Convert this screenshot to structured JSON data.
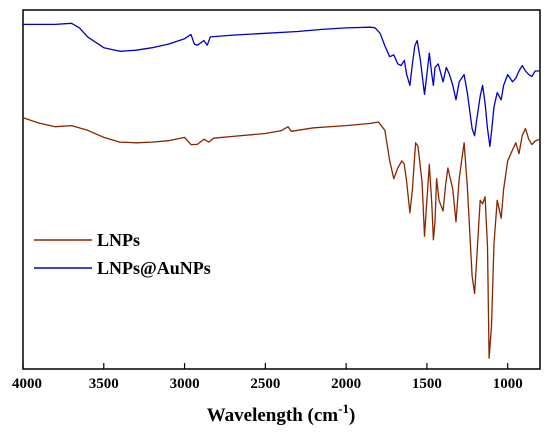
{
  "chart_data": {
    "type": "line",
    "title": "",
    "xlabel": "Wavelength (cm",
    "xlabel_superscript": "-1",
    "xlabel_suffix": ")",
    "ylabel": "",
    "xlim": [
      4000,
      800
    ],
    "xticks": [
      4000,
      3500,
      3000,
      2500,
      2000,
      1500,
      1000
    ],
    "ylim": [
      0,
      100
    ],
    "grid": false,
    "legend_placement": "left",
    "series": [
      {
        "name": "LNPs",
        "color": "#8B2500",
        "points": [
          [
            4000,
            70
          ],
          [
            3900,
            68.5
          ],
          [
            3800,
            67.5
          ],
          [
            3700,
            67.8
          ],
          [
            3600,
            66.5
          ],
          [
            3500,
            64.5
          ],
          [
            3400,
            63.2
          ],
          [
            3300,
            63.0
          ],
          [
            3200,
            63.2
          ],
          [
            3100,
            63.6
          ],
          [
            3000,
            64.5
          ],
          [
            2960,
            62.5
          ],
          [
            2920,
            62.6
          ],
          [
            2880,
            64.0
          ],
          [
            2850,
            63.2
          ],
          [
            2820,
            64.3
          ],
          [
            2700,
            64.8
          ],
          [
            2500,
            65.6
          ],
          [
            2400,
            66.4
          ],
          [
            2360,
            67.5
          ],
          [
            2340,
            66.2
          ],
          [
            2200,
            67.2
          ],
          [
            2000,
            67.8
          ],
          [
            1850,
            68.4
          ],
          [
            1800,
            68.8
          ],
          [
            1760,
            66.5
          ],
          [
            1730,
            58
          ],
          [
            1705,
            53
          ],
          [
            1680,
            56
          ],
          [
            1655,
            58
          ],
          [
            1640,
            57
          ],
          [
            1625,
            52
          ],
          [
            1605,
            43.5
          ],
          [
            1590,
            50
          ],
          [
            1570,
            63
          ],
          [
            1555,
            62
          ],
          [
            1530,
            52
          ],
          [
            1515,
            37
          ],
          [
            1500,
            47
          ],
          [
            1485,
            57
          ],
          [
            1470,
            46
          ],
          [
            1460,
            36
          ],
          [
            1450,
            41
          ],
          [
            1440,
            53
          ],
          [
            1425,
            47
          ],
          [
            1400,
            44
          ],
          [
            1385,
            51
          ],
          [
            1370,
            56
          ],
          [
            1340,
            50
          ],
          [
            1320,
            41
          ],
          [
            1300,
            53
          ],
          [
            1270,
            63
          ],
          [
            1250,
            51
          ],
          [
            1220,
            26
          ],
          [
            1205,
            21
          ],
          [
            1190,
            32
          ],
          [
            1170,
            47
          ],
          [
            1155,
            46
          ],
          [
            1140,
            48
          ],
          [
            1125,
            34
          ],
          [
            1115,
            3
          ],
          [
            1100,
            12
          ],
          [
            1085,
            35
          ],
          [
            1065,
            47
          ],
          [
            1040,
            42
          ],
          [
            1025,
            50
          ],
          [
            1000,
            58
          ],
          [
            970,
            61
          ],
          [
            950,
            63
          ],
          [
            930,
            60
          ],
          [
            910,
            65
          ],
          [
            890,
            67
          ],
          [
            870,
            64
          ],
          [
            850,
            62.5
          ],
          [
            830,
            63.5
          ],
          [
            800,
            64
          ]
        ]
      },
      {
        "name": "LNPs@AuNPs",
        "color": "#0000CC",
        "points": [
          [
            4000,
            96
          ],
          [
            3800,
            96
          ],
          [
            3700,
            96.3
          ],
          [
            3650,
            95
          ],
          [
            3600,
            92.5
          ],
          [
            3500,
            89.5
          ],
          [
            3400,
            88.5
          ],
          [
            3300,
            88.8
          ],
          [
            3200,
            89.5
          ],
          [
            3100,
            90.5
          ],
          [
            3000,
            92
          ],
          [
            2960,
            93.2
          ],
          [
            2940,
            90.5
          ],
          [
            2920,
            90.2
          ],
          [
            2880,
            91.5
          ],
          [
            2860,
            90.2
          ],
          [
            2840,
            92.5
          ],
          [
            2700,
            93
          ],
          [
            2500,
            93.5
          ],
          [
            2300,
            94
          ],
          [
            2150,
            94.6
          ],
          [
            2000,
            95
          ],
          [
            1850,
            95.2
          ],
          [
            1820,
            95
          ],
          [
            1790,
            93.5
          ],
          [
            1760,
            90
          ],
          [
            1730,
            87
          ],
          [
            1705,
            87.5
          ],
          [
            1680,
            85
          ],
          [
            1660,
            84.5
          ],
          [
            1640,
            86
          ],
          [
            1625,
            82
          ],
          [
            1605,
            79
          ],
          [
            1590,
            85
          ],
          [
            1575,
            90
          ],
          [
            1560,
            91.5
          ],
          [
            1540,
            86
          ],
          [
            1515,
            76.5
          ],
          [
            1500,
            82
          ],
          [
            1485,
            88
          ],
          [
            1470,
            82
          ],
          [
            1460,
            79
          ],
          [
            1450,
            84
          ],
          [
            1430,
            85
          ],
          [
            1400,
            80
          ],
          [
            1380,
            84
          ],
          [
            1360,
            82
          ],
          [
            1340,
            79
          ],
          [
            1320,
            75
          ],
          [
            1300,
            80
          ],
          [
            1270,
            82
          ],
          [
            1250,
            77
          ],
          [
            1220,
            67
          ],
          [
            1205,
            65
          ],
          [
            1190,
            70
          ],
          [
            1170,
            76
          ],
          [
            1155,
            79
          ],
          [
            1140,
            74
          ],
          [
            1125,
            67
          ],
          [
            1110,
            62
          ],
          [
            1100,
            66
          ],
          [
            1085,
            73
          ],
          [
            1065,
            77
          ],
          [
            1040,
            75
          ],
          [
            1025,
            79
          ],
          [
            1000,
            82
          ],
          [
            970,
            80
          ],
          [
            950,
            81
          ],
          [
            930,
            83
          ],
          [
            910,
            84.5
          ],
          [
            890,
            83
          ],
          [
            870,
            82
          ],
          [
            850,
            81.5
          ],
          [
            830,
            83
          ],
          [
            800,
            83
          ]
        ]
      }
    ]
  }
}
